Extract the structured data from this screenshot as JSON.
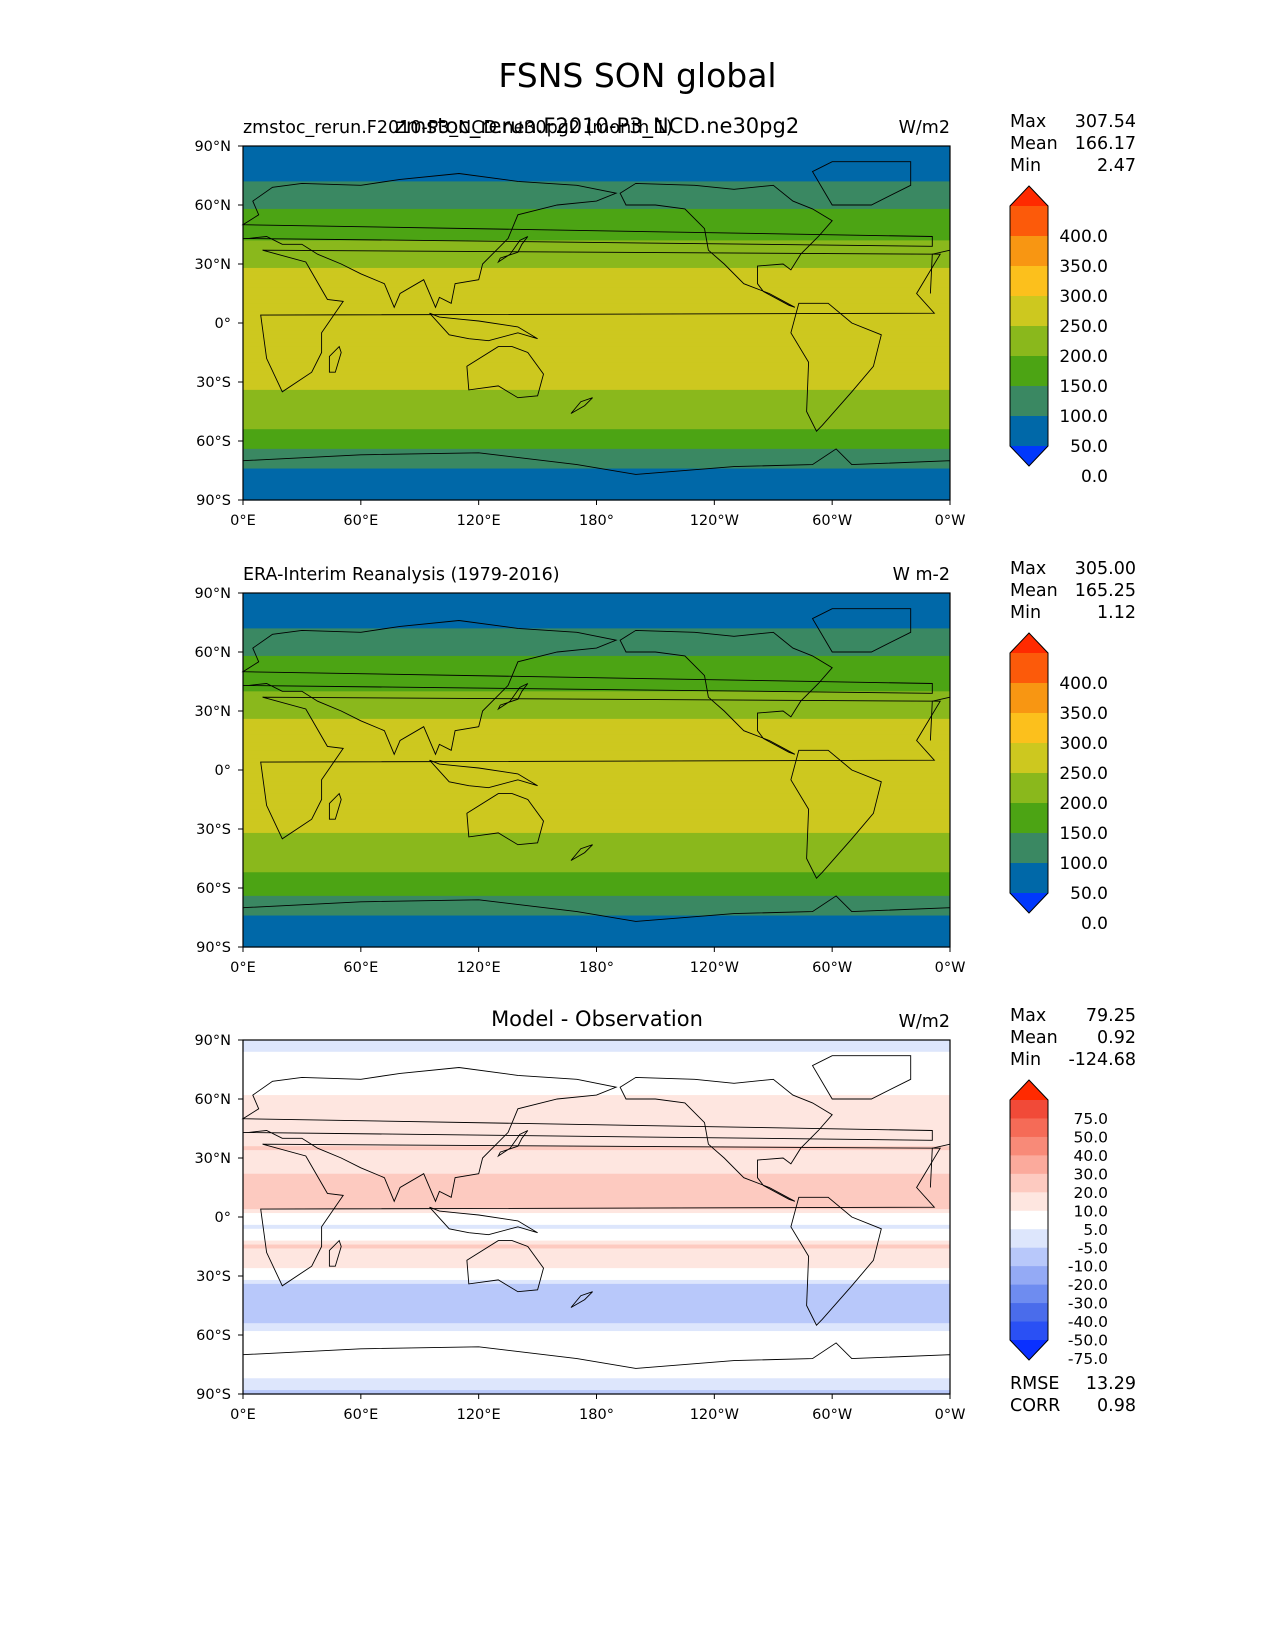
{
  "suptitle": "FSNS SON global",
  "panels": [
    {
      "left_title": "zmstoc_rerun.F2010-P3_NCD.ne30pg2 (month 1)",
      "center_title": "zmstoc_rerun.F2010-P3_NCD.ne30pg2",
      "units": "W/m2",
      "stats": [
        {
          "label": "Max",
          "value": "307.54"
        },
        {
          "label": "Mean",
          "value": "166.17"
        },
        {
          "label": "Min",
          "value": "2.47"
        }
      ],
      "colorbar": {
        "labels": [
          "400.0",
          "350.0",
          "300.0",
          "250.0",
          "200.0",
          "150.0",
          "100.0",
          "50.0",
          "0.0"
        ],
        "colors": [
          "#ff2a00",
          "#fc5a0a",
          "#f89612",
          "#fcc01c",
          "#cdc81f",
          "#8ab81c",
          "#4ca414",
          "#3a8862",
          "#0068a8",
          "#0038fc"
        ]
      }
    },
    {
      "left_title": "ERA-Interim Reanalysis (1979-2016)",
      "center_title": "",
      "units": "W m-2",
      "stats": [
        {
          "label": "Max",
          "value": "305.00"
        },
        {
          "label": "Mean",
          "value": "165.25"
        },
        {
          "label": "Min",
          "value": "1.12"
        }
      ],
      "colorbar": {
        "labels": [
          "400.0",
          "350.0",
          "300.0",
          "250.0",
          "200.0",
          "150.0",
          "100.0",
          "50.0",
          "0.0"
        ],
        "colors": [
          "#ff2a00",
          "#fc5a0a",
          "#f89612",
          "#fcc01c",
          "#cdc81f",
          "#8ab81c",
          "#4ca414",
          "#3a8862",
          "#0068a8",
          "#0038fc"
        ]
      }
    },
    {
      "left_title": "",
      "center_title": "Model - Observation",
      "units": "W/m2",
      "stats": [
        {
          "label": "Max",
          "value": "79.25"
        },
        {
          "label": "Mean",
          "value": "0.92"
        },
        {
          "label": "Min",
          "value": "-124.68"
        }
      ],
      "extra_stats": [
        {
          "label": "RMSE",
          "value": "13.29"
        },
        {
          "label": "CORR",
          "value": "0.98"
        }
      ],
      "colorbar": {
        "labels": [
          "75.0",
          "50.0",
          "40.0",
          "30.0",
          "20.0",
          "10.0",
          "5.0",
          "-5.0",
          "-10.0",
          "-20.0",
          "-30.0",
          "-40.0",
          "-50.0",
          "-75.0"
        ],
        "colors": [
          "#ff2a00",
          "#f14a38",
          "#f56b57",
          "#f88a78",
          "#fbaa9c",
          "#fdcac0",
          "#fee6e0",
          "#ffffff",
          "#dde6fc",
          "#b8c8fa",
          "#94aaf5",
          "#6e8cf0",
          "#4a6ceb",
          "#2a50f4",
          "#0a30ff"
        ]
      }
    }
  ],
  "chart_data": [
    {
      "type": "heatmap",
      "title": "zmstoc_rerun.F2010-P3_NCD.ne30pg2",
      "units": "W/m2",
      "x_ticks": [
        "0°E",
        "60°E",
        "120°E",
        "180°",
        "120°W",
        "60°W",
        "0°W"
      ],
      "y_ticks": [
        "90°N",
        "60°N",
        "30°N",
        "0°",
        "30°S",
        "60°S",
        "90°S"
      ],
      "xlim": [
        0,
        360
      ],
      "ylim": [
        -90,
        90
      ],
      "levels": [
        0,
        50,
        100,
        150,
        200,
        250,
        300,
        350,
        400
      ],
      "zonal_profile": {
        "lat": [
          90,
          75,
          65,
          55,
          45,
          35,
          25,
          15,
          5,
          -5,
          -15,
          -25,
          -35,
          -45,
          -55,
          -65,
          -75,
          -90
        ],
        "value": [
          30,
          40,
          70,
          110,
          140,
          175,
          210,
          240,
          245,
          240,
          235,
          220,
          195,
          170,
          145,
          90,
          40,
          25
        ]
      },
      "max": 307.54,
      "mean": 166.17,
      "min": 2.47
    },
    {
      "type": "heatmap",
      "title": "ERA-Interim Reanalysis (1979-2016)",
      "units": "W m-2",
      "x_ticks": [
        "0°E",
        "60°E",
        "120°E",
        "180°",
        "120°W",
        "60°W",
        "0°W"
      ],
      "y_ticks": [
        "90°N",
        "60°N",
        "30°N",
        "0°",
        "30°S",
        "60°S",
        "90°S"
      ],
      "xlim": [
        0,
        360
      ],
      "ylim": [
        -90,
        90
      ],
      "levels": [
        0,
        50,
        100,
        150,
        200,
        250,
        300,
        350,
        400
      ],
      "zonal_profile": {
        "lat": [
          90,
          75,
          65,
          55,
          45,
          35,
          25,
          15,
          5,
          -5,
          -15,
          -25,
          -35,
          -45,
          -55,
          -65,
          -75,
          -90
        ],
        "value": [
          30,
          40,
          70,
          110,
          135,
          170,
          205,
          225,
          230,
          235,
          230,
          215,
          190,
          165,
          140,
          90,
          40,
          25
        ]
      },
      "max": 305.0,
      "mean": 165.25,
      "min": 1.12
    },
    {
      "type": "heatmap",
      "title": "Model - Observation",
      "units": "W/m2",
      "x_ticks": [
        "0°E",
        "60°E",
        "120°E",
        "180°",
        "120°W",
        "60°W",
        "0°W"
      ],
      "y_ticks": [
        "90°N",
        "60°N",
        "30°N",
        "0°",
        "30°S",
        "60°S",
        "90°S"
      ],
      "xlim": [
        0,
        360
      ],
      "ylim": [
        -90,
        90
      ],
      "levels": [
        -75,
        -50,
        -40,
        -30,
        -20,
        -10,
        -5,
        5,
        10,
        20,
        30,
        40,
        50,
        75
      ],
      "zonal_profile": {
        "lat": [
          90,
          75,
          65,
          55,
          45,
          35,
          25,
          15,
          5,
          -5,
          -15,
          -25,
          -35,
          -45,
          -55,
          -65,
          -75,
          -90
        ],
        "value": [
          -8,
          0,
          3,
          8,
          5,
          10,
          8,
          15,
          12,
          -6,
          10,
          8,
          -12,
          -18,
          -10,
          3,
          0,
          -12
        ]
      },
      "max": 79.25,
      "mean": 0.92,
      "min": -124.68,
      "rmse": 13.29,
      "corr": 0.98
    }
  ]
}
